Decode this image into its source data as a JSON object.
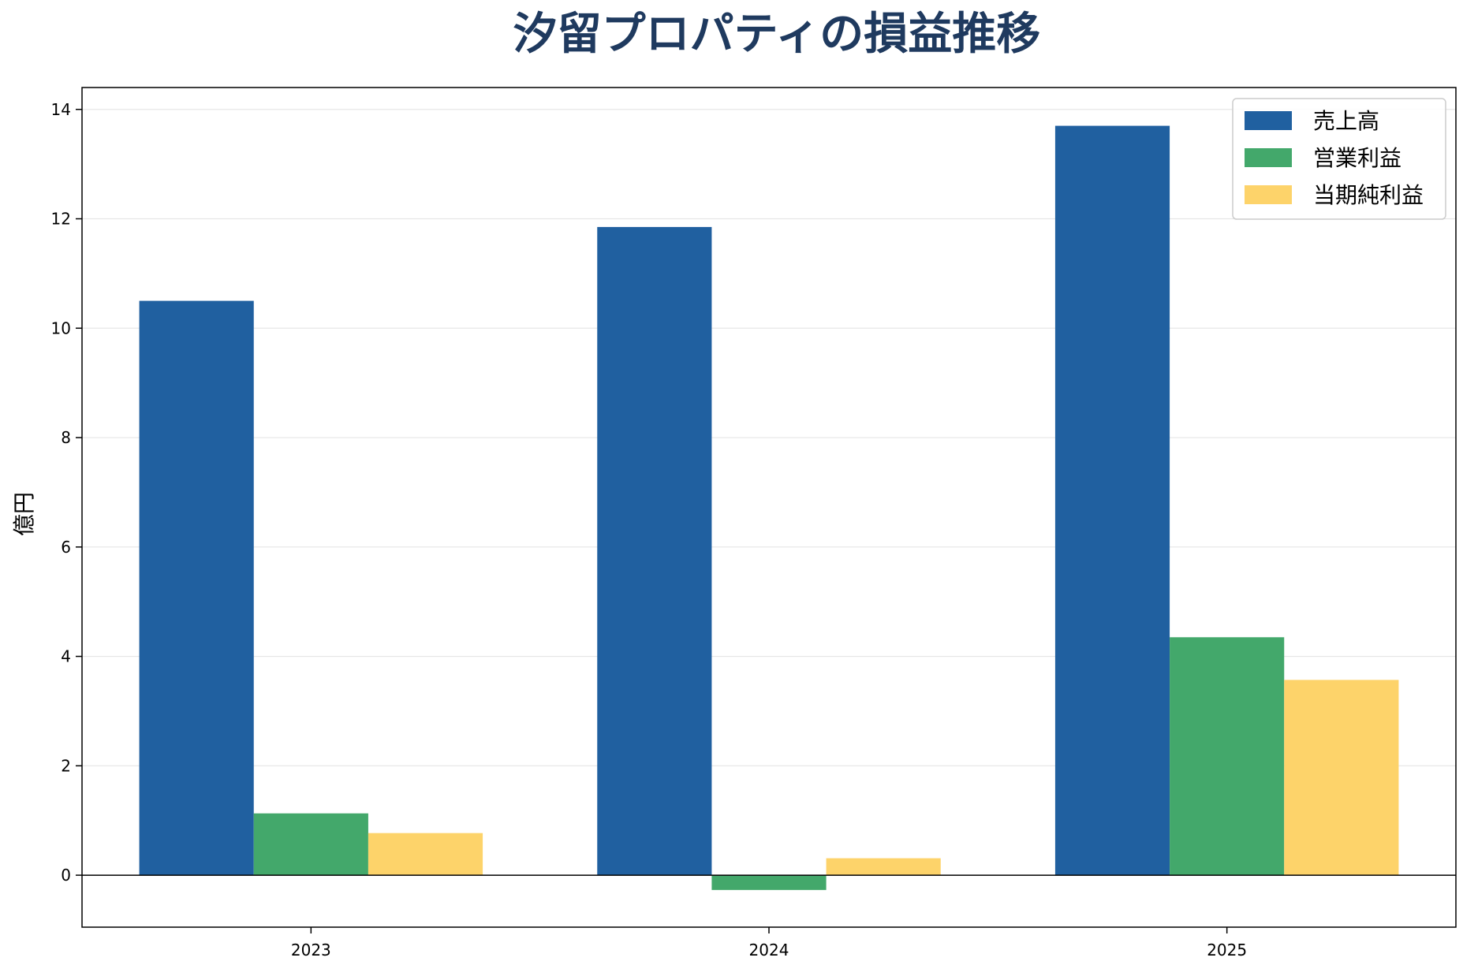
{
  "chart_data": {
    "type": "bar",
    "title": "汐留プロパティの損益推移",
    "xlabel": "",
    "ylabel": "億円",
    "categories": [
      "2023",
      "2024",
      "2025"
    ],
    "series": [
      {
        "name": "売上高",
        "values": [
          10.5,
          11.85,
          13.7
        ],
        "color": "#2060a0"
      },
      {
        "name": "営業利益",
        "values": [
          1.13,
          -0.27,
          4.35
        ],
        "color": "#43a86b"
      },
      {
        "name": "当期純利益",
        "values": [
          0.77,
          0.31,
          3.57
        ],
        "color": "#fdd36a"
      }
    ],
    "ylim": [
      -0.95,
      14.4
    ],
    "yticks": [
      0,
      2,
      4,
      6,
      8,
      10,
      12,
      14
    ],
    "grid": true,
    "legend": "top-right"
  }
}
